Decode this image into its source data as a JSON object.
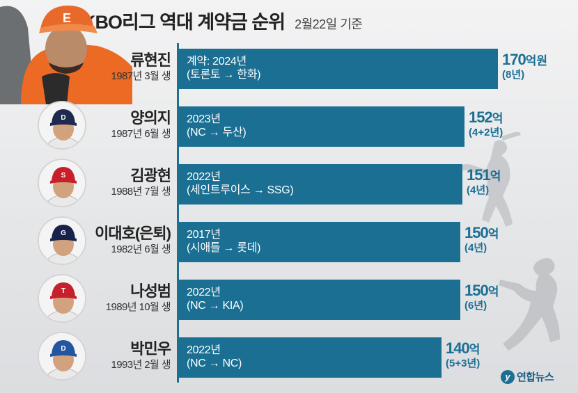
{
  "header": {
    "title": "KBO리그 역대 계약금 순위",
    "subtitle": "2월22일 기준"
  },
  "colors": {
    "bar": "#1b6f93",
    "value_text": "#1b6f93",
    "background": "#e8e9ea"
  },
  "chart_data": {
    "type": "bar",
    "orientation": "horizontal",
    "title": "KBO리그 역대 계약금 순위",
    "unit": "억",
    "categories": [
      "류현진",
      "양의지",
      "김광현",
      "이대호(은퇴)",
      "나성범",
      "박민우"
    ],
    "values": [
      170,
      152,
      151,
      150,
      150,
      140
    ],
    "xlim": [
      0,
      170
    ]
  },
  "players": [
    {
      "name": "류현진",
      "born": "1987년 3월 생",
      "contract_line1": "계약: 2024년",
      "contract_line2": "(토론토 → 한화)",
      "value_num": "170",
      "value_unit": "억원",
      "term": "(8년)",
      "cap_color": "#e8692a",
      "cap_letter": "E"
    },
    {
      "name": "양의지",
      "born": "1987년 6월 생",
      "contract_line1": "2023년",
      "contract_line2": "(NC → 두산)",
      "value_num": "152",
      "value_unit": "억",
      "term": "(4+2년)",
      "cap_color": "#1d2a4d",
      "cap_letter": "D"
    },
    {
      "name": "김광현",
      "born": "1988년 7월 생",
      "contract_line1": "2022년",
      "contract_line2": "(세인트루이스 → SSG)",
      "value_num": "151",
      "value_unit": "억",
      "term": "(4년)",
      "cap_color": "#c8202a",
      "cap_letter": "S"
    },
    {
      "name": "이대호(은퇴)",
      "born": "1982년 6월 생",
      "contract_line1": "2017년",
      "contract_line2": "(시애틀 → 롯데)",
      "value_num": "150",
      "value_unit": "억",
      "term": "(4년)",
      "cap_color": "#16224a",
      "cap_letter": "G"
    },
    {
      "name": "나성범",
      "born": "1989년 10월 생",
      "contract_line1": "2022년",
      "contract_line2": "(NC → KIA)",
      "value_num": "150",
      "value_unit": "억",
      "term": "(6년)",
      "cap_color": "#c5202b",
      "cap_letter": "T"
    },
    {
      "name": "박민우",
      "born": "1993년 2월 생",
      "contract_line1": "2022년",
      "contract_line2": "(NC → NC)",
      "value_num": "140",
      "value_unit": "억",
      "term": "(5+3년)",
      "cap_color": "#2355a0",
      "cap_letter": "D"
    }
  ],
  "source": "연합뉴스"
}
